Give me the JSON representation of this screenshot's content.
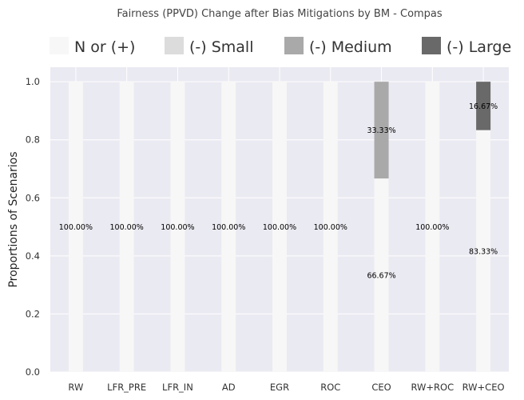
{
  "chart_data": {
    "type": "bar",
    "stacked": true,
    "title": "Fairness (PPVD) Change after Bias Mitigations by BM - Compas",
    "xlabel": "",
    "ylabel": "Proportions of Scenarios",
    "ylim": [
      0,
      1.05
    ],
    "yticks": [
      "0.0",
      "0.2",
      "0.4",
      "0.6",
      "0.8",
      "1.0"
    ],
    "grid": true,
    "legend_position": "top",
    "categories": [
      "RW",
      "LFR_PRE",
      "LFR_IN",
      "AD",
      "EGR",
      "ROC",
      "CEO",
      "RW+ROC",
      "RW+CEO"
    ],
    "series": [
      {
        "name": "N or (+)",
        "color": "#f7f7f7",
        "values": [
          1.0,
          1.0,
          1.0,
          1.0,
          1.0,
          1.0,
          0.6667,
          1.0,
          0.8333
        ]
      },
      {
        "name": "(-) Small",
        "color": "#dcdcdc",
        "values": [
          0,
          0,
          0,
          0,
          0,
          0,
          0,
          0,
          0
        ]
      },
      {
        "name": "(-) Medium",
        "color": "#a9a9a9",
        "values": [
          0,
          0,
          0,
          0,
          0,
          0,
          0.3333,
          0,
          0
        ]
      },
      {
        "name": "(-) Large",
        "color": "#696969",
        "values": [
          0,
          0,
          0,
          0,
          0,
          0,
          0,
          0,
          0.1667
        ]
      }
    ],
    "data_labels": [
      {
        "category": "RW",
        "series": "N or (+)",
        "text": "100.00%"
      },
      {
        "category": "LFR_PRE",
        "series": "N or (+)",
        "text": "100.00%"
      },
      {
        "category": "LFR_IN",
        "series": "N or (+)",
        "text": "100.00%"
      },
      {
        "category": "AD",
        "series": "N or (+)",
        "text": "100.00%"
      },
      {
        "category": "EGR",
        "series": "N or (+)",
        "text": "100.00%"
      },
      {
        "category": "ROC",
        "series": "N or (+)",
        "text": "100.00%"
      },
      {
        "category": "CEO",
        "series": "N or (+)",
        "text": "66.67%"
      },
      {
        "category": "CEO",
        "series": "(-) Medium",
        "text": "33.33%"
      },
      {
        "category": "RW+ROC",
        "series": "N or (+)",
        "text": "100.00%"
      },
      {
        "category": "RW+CEO",
        "series": "N or (+)",
        "text": "83.33%"
      },
      {
        "category": "RW+CEO",
        "series": "(-) Large",
        "text": "16.67%"
      }
    ],
    "colors": {
      "plot_background": "#eaeaf2",
      "grid": "#ffffff",
      "text": "#333333"
    }
  }
}
